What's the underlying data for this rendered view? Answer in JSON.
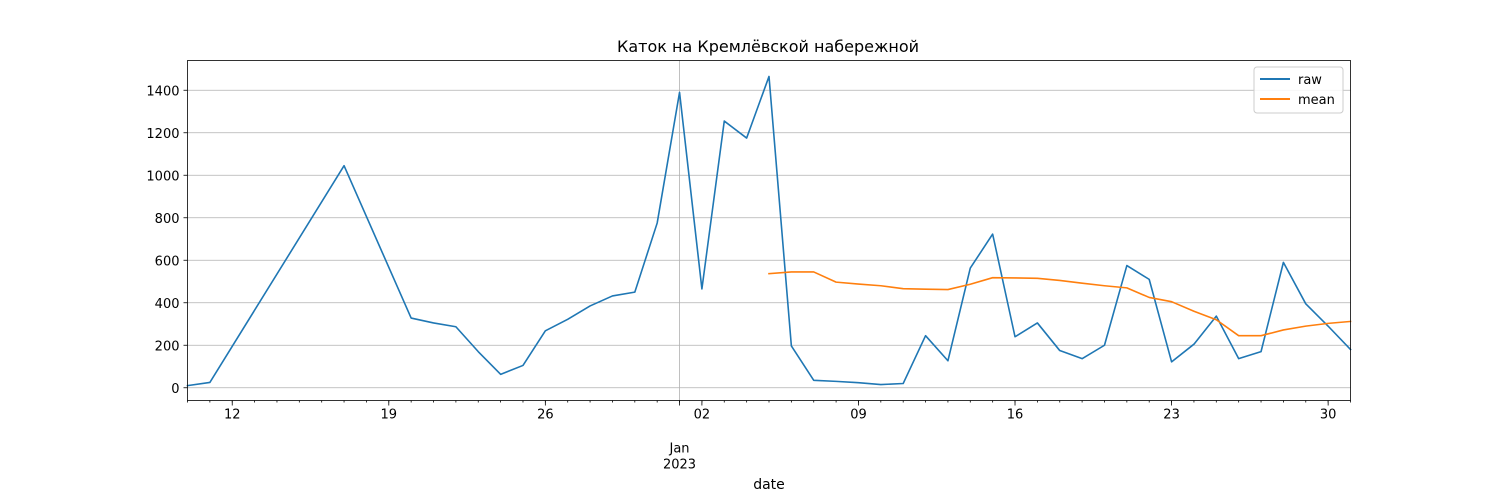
{
  "chart_data": {
    "type": "line",
    "title": "Каток на Кремлёвской набережной",
    "xlabel": "date",
    "ylabel": "",
    "x_range": [
      "2022-12-10",
      "2023-01-31"
    ],
    "ylim": [
      -60,
      1540
    ],
    "y_ticks": [
      0,
      200,
      400,
      600,
      800,
      1000,
      1200,
      1400
    ],
    "x_ticks": [
      {
        "date": "2022-12-12",
        "label": "12"
      },
      {
        "date": "2022-12-19",
        "label": "19"
      },
      {
        "date": "2022-12-26",
        "label": "26"
      },
      {
        "date": "2023-01-02",
        "label": "02"
      },
      {
        "date": "2023-01-09",
        "label": "09"
      },
      {
        "date": "2023-01-16",
        "label": "16"
      },
      {
        "date": "2023-01-23",
        "label": "23"
      },
      {
        "date": "2023-01-30",
        "label": "30"
      }
    ],
    "major_tick": {
      "date": "2023-01-01",
      "label_line1": "Jan",
      "label_line2": "2023"
    },
    "grid": "y, plus vertical line at Jan 2023",
    "legend_placement": "top-right",
    "series": [
      {
        "name": "raw",
        "color": "#1f77b4",
        "points": [
          [
            "2022-12-10",
            10
          ],
          [
            "2022-12-11",
            25
          ],
          [
            "2022-12-17",
            1045
          ],
          [
            "2022-12-20",
            328
          ],
          [
            "2022-12-21",
            305
          ],
          [
            "2022-12-22",
            287
          ],
          [
            "2022-12-23",
            170
          ],
          [
            "2022-12-24",
            63
          ],
          [
            "2022-12-25",
            105
          ],
          [
            "2022-12-26",
            268
          ],
          [
            "2022-12-27",
            322
          ],
          [
            "2022-12-28",
            385
          ],
          [
            "2022-12-29",
            432
          ],
          [
            "2022-12-30",
            450
          ],
          [
            "2022-12-31",
            775
          ],
          [
            "2023-01-01",
            1390
          ],
          [
            "2023-01-02",
            465
          ],
          [
            "2023-01-03",
            1255
          ],
          [
            "2023-01-04",
            1175
          ],
          [
            "2023-01-05",
            1465
          ],
          [
            "2023-01-06",
            197
          ],
          [
            "2023-01-07",
            35
          ],
          [
            "2023-01-08",
            30
          ],
          [
            "2023-01-09",
            24
          ],
          [
            "2023-01-10",
            15
          ],
          [
            "2023-01-11",
            20
          ],
          [
            "2023-01-12",
            245
          ],
          [
            "2023-01-13",
            127
          ],
          [
            "2023-01-14",
            563
          ],
          [
            "2023-01-15",
            723
          ],
          [
            "2023-01-16",
            240
          ],
          [
            "2023-01-17",
            305
          ],
          [
            "2023-01-18",
            175
          ],
          [
            "2023-01-19",
            137
          ],
          [
            "2023-01-20",
            200
          ],
          [
            "2023-01-21",
            575
          ],
          [
            "2023-01-22",
            510
          ],
          [
            "2023-01-23",
            122
          ],
          [
            "2023-01-24",
            205
          ],
          [
            "2023-01-25",
            337
          ],
          [
            "2023-01-26",
            137
          ],
          [
            "2023-01-27",
            170
          ],
          [
            "2023-01-28",
            590
          ],
          [
            "2023-01-29",
            395
          ],
          [
            "2023-01-30",
            290
          ],
          [
            "2023-01-31",
            180
          ]
        ]
      },
      {
        "name": "mean",
        "color": "#ff7f0e",
        "points": [
          [
            "2023-01-05",
            537
          ],
          [
            "2023-01-06",
            545
          ],
          [
            "2023-01-07",
            545
          ],
          [
            "2023-01-08",
            497
          ],
          [
            "2023-01-09",
            488
          ],
          [
            "2023-01-10",
            480
          ],
          [
            "2023-01-11",
            466
          ],
          [
            "2023-01-12",
            464
          ],
          [
            "2023-01-13",
            462
          ],
          [
            "2023-01-14",
            487
          ],
          [
            "2023-01-15",
            518
          ],
          [
            "2023-01-16",
            517
          ],
          [
            "2023-01-17",
            515
          ],
          [
            "2023-01-18",
            505
          ],
          [
            "2023-01-19",
            492
          ],
          [
            "2023-01-20",
            480
          ],
          [
            "2023-01-21",
            470
          ],
          [
            "2023-01-22",
            425
          ],
          [
            "2023-01-23",
            405
          ],
          [
            "2023-01-24",
            360
          ],
          [
            "2023-01-25",
            320
          ],
          [
            "2023-01-26",
            245
          ],
          [
            "2023-01-27",
            245
          ],
          [
            "2023-01-28",
            272
          ],
          [
            "2023-01-29",
            290
          ],
          [
            "2023-01-30",
            303
          ],
          [
            "2023-01-31",
            312
          ]
        ]
      }
    ]
  }
}
